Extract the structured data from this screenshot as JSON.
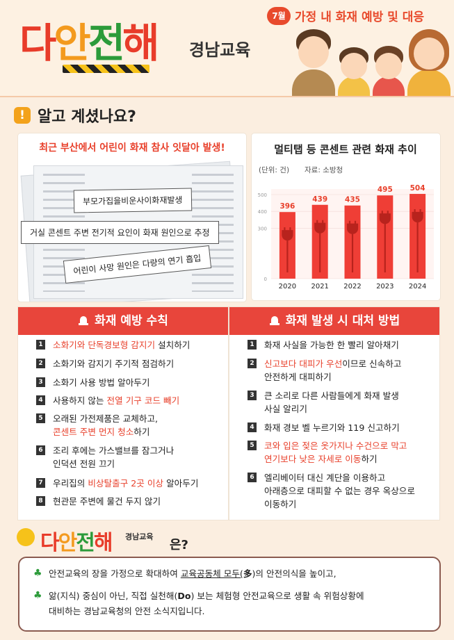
{
  "header": {
    "logo_chars": [
      "다",
      "안",
      "전",
      "해"
    ],
    "logo_sub": "경남교육",
    "month_badge": "7월",
    "title": "가정 내 화재 예방 및 대응"
  },
  "section": {
    "icon": "!",
    "title": "알고 계셨나요?"
  },
  "news": {
    "headline": "최근 부산에서 어린이 화재 참사 잇달아 발생!",
    "tags": [
      "부모가집을비운사이화재발생",
      "거실 콘센트 주변 전기적 요인이 화재 원인으로 추정",
      "어린이 사망 원인은 다량의 연기 흡입"
    ]
  },
  "chart_data": {
    "type": "bar",
    "title": "멀티탭 등 콘센트 관련 화재 추이",
    "unit": "(단위: 건)",
    "source": "자료: 소방청",
    "categories": [
      "2020",
      "2021",
      "2022",
      "2023",
      "2024"
    ],
    "values": [
      396,
      439,
      435,
      495,
      504
    ],
    "ylim": [
      0,
      500
    ],
    "yticks": [
      "0",
      "300",
      "400",
      "500"
    ],
    "bar_color": "#ef3e36",
    "label_color": "#e8402b"
  },
  "prevention": {
    "title": "화재 예방 수칙",
    "items": [
      {
        "num": "1",
        "parts": [
          [
            "소화기와 단독경보형 감지기",
            "red"
          ],
          [
            " 설치하기",
            ""
          ]
        ]
      },
      {
        "num": "2",
        "parts": [
          [
            "소화기와 감지기 주기적 점검하기",
            ""
          ]
        ]
      },
      {
        "num": "3",
        "parts": [
          [
            "소화기 사용 방법 알아두기",
            ""
          ]
        ]
      },
      {
        "num": "4",
        "parts": [
          [
            "사용하지 않는 ",
            ""
          ],
          [
            "전열 기구 코드 빼기",
            "red"
          ]
        ]
      },
      {
        "num": "5",
        "parts": [
          [
            "오래된 가전제품은 교체하고,",
            ""
          ]
        ],
        "parts2": [
          [
            "콘센트 주변 먼지 청소",
            "red"
          ],
          [
            "하기",
            ""
          ]
        ]
      },
      {
        "num": "6",
        "parts": [
          [
            "조리 후에는 가스밸브를 잠그거나",
            ""
          ]
        ],
        "parts2": [
          [
            "인덕션 전원 끄기",
            ""
          ]
        ]
      },
      {
        "num": "7",
        "parts": [
          [
            "우리집의 ",
            ""
          ],
          [
            "비상탈출구 2곳 이상",
            "red"
          ],
          [
            " 알아두기",
            ""
          ]
        ]
      },
      {
        "num": "8",
        "parts": [
          [
            "현관문 주변에 물건 두지 않기",
            ""
          ]
        ]
      }
    ]
  },
  "response": {
    "title": "화재 발생 시 대처 방법",
    "items": [
      {
        "num": "1",
        "parts": [
          [
            "화재 사실을 가능한 한 빨리 알아채기",
            ""
          ]
        ]
      },
      {
        "num": "2",
        "parts": [
          [
            "신고보다 대피가 우선",
            "red"
          ],
          [
            "이므로 신속하고",
            ""
          ]
        ],
        "parts2": [
          [
            "안전하게 대피하기",
            ""
          ]
        ]
      },
      {
        "num": "3",
        "parts": [
          [
            "큰 소리로 다른 사람들에게 화재 발생",
            ""
          ]
        ],
        "parts2": [
          [
            "사실 알리기",
            ""
          ]
        ]
      },
      {
        "num": "4",
        "parts": [
          [
            "화재 경보 벨 누르기와 119 신고하기",
            ""
          ]
        ]
      },
      {
        "num": "5",
        "parts": [
          [
            "코와 입은 젖은 옷가지나 수건으로 막고",
            "red"
          ]
        ],
        "parts2": [
          [
            "연기보다 낮은 자세로 이동",
            "red"
          ],
          [
            "하기",
            ""
          ]
        ]
      },
      {
        "num": "6",
        "parts": [
          [
            "엘리베이터 대신 계단을 이용하고",
            ""
          ]
        ],
        "parts2": [
          [
            "아래층으로 대피할 수 없는 경우 옥상으로",
            ""
          ]
        ],
        "parts3": [
          [
            "이동하기",
            ""
          ]
        ]
      }
    ]
  },
  "about": {
    "logo_chars": [
      "다",
      "안",
      "전",
      "해"
    ],
    "logo_sub": "경남교육",
    "question": "은?",
    "line1_a": "안전교육의 장을 가정으로 확대하여 ",
    "line1_u": "교육공동체 모두(",
    "line1_b": "多",
    "line1_c": ")의 안전의식을 높이고,",
    "line2_a": "앎(지식) 중심이 아닌, 직접 실천해(",
    "line2_b": "Do",
    "line2_c": ") 보는 체험형 안전교육으로 생활 속 위험상황에",
    "line3": "대비하는 경남교육청의 안전 소식지입니다."
  }
}
